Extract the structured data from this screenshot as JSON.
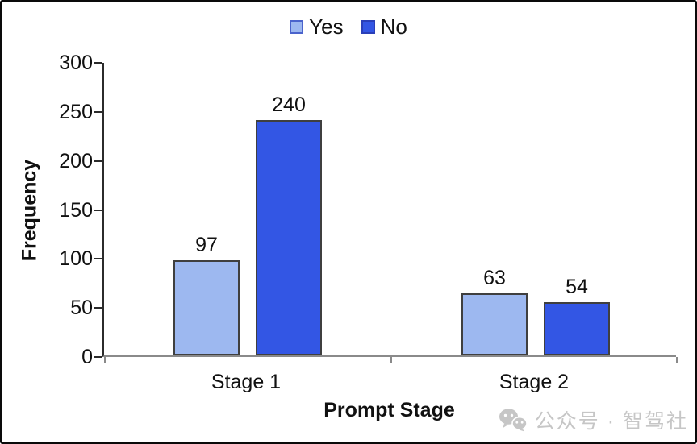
{
  "legend": {
    "items": [
      {
        "label": "Yes",
        "color": "#9db8f0",
        "border": "#4a63cc"
      },
      {
        "label": "No",
        "color": "#3356e4",
        "border": "#2a3fb8"
      }
    ]
  },
  "chart_data": {
    "type": "bar",
    "title": "",
    "categories": [
      "Stage 1",
      "Stage 2"
    ],
    "series": [
      {
        "name": "Yes",
        "values": [
          97,
          63
        ],
        "color": "#9db8f0"
      },
      {
        "name": "No",
        "values": [
          240,
          54
        ],
        "color": "#3356e4"
      }
    ],
    "xlabel": "Prompt Stage",
    "ylabel": "Frequency",
    "ylim": [
      0,
      300
    ],
    "yticks": [
      0,
      50,
      100,
      150,
      200,
      250,
      300
    ],
    "grid": false,
    "legend_position": "top-center",
    "bar_labels": true
  },
  "watermark": {
    "icon": "wechat-icon",
    "text": "公众号 · 智驾社",
    "color": "#c6c6c6"
  }
}
